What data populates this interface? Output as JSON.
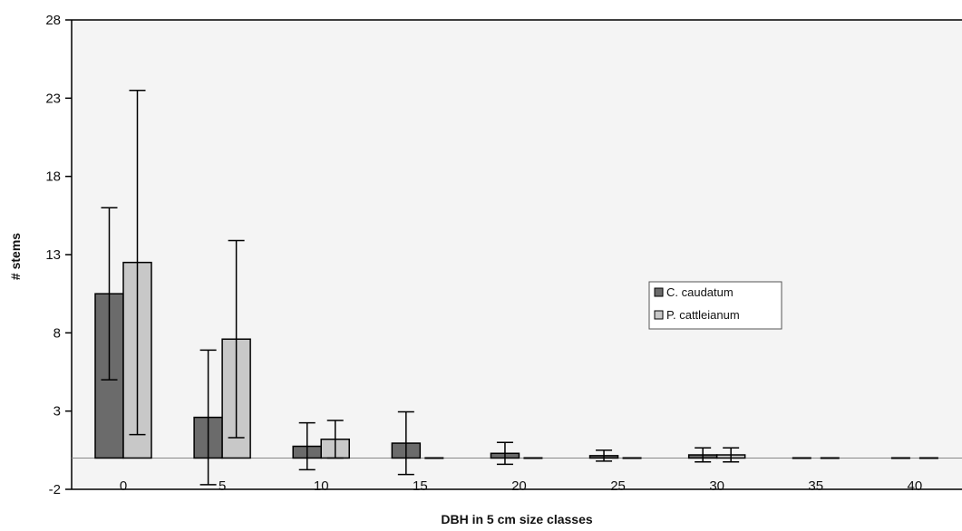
{
  "chart_data": {
    "type": "bar",
    "title": "",
    "xlabel": "DBH in 5 cm size classes",
    "ylabel": "# stems",
    "ylim": [
      -2,
      28
    ],
    "yticks": [
      -2,
      3,
      8,
      13,
      18,
      23,
      28
    ],
    "categories": [
      "0",
      "5",
      "10",
      "15",
      "20",
      "25",
      "30",
      "35",
      "40"
    ],
    "grid": false,
    "legend_position": "right-center",
    "series": [
      {
        "name": "C. caudatum",
        "color": "#6b6b6b",
        "values": [
          10.5,
          2.6,
          0.75,
          0.95,
          0.3,
          0.15,
          0.2,
          0,
          0
        ],
        "error": [
          5.5,
          4.3,
          1.5,
          2.0,
          0.7,
          0.35,
          0.45,
          0,
          0
        ]
      },
      {
        "name": "P. cattleianum",
        "color": "#c8c8c8",
        "values": [
          12.5,
          7.6,
          1.2,
          0,
          0,
          0,
          0.2,
          0,
          0
        ],
        "error": [
          11.0,
          6.3,
          1.2,
          0,
          0,
          0,
          0.45,
          0,
          0
        ]
      }
    ]
  }
}
